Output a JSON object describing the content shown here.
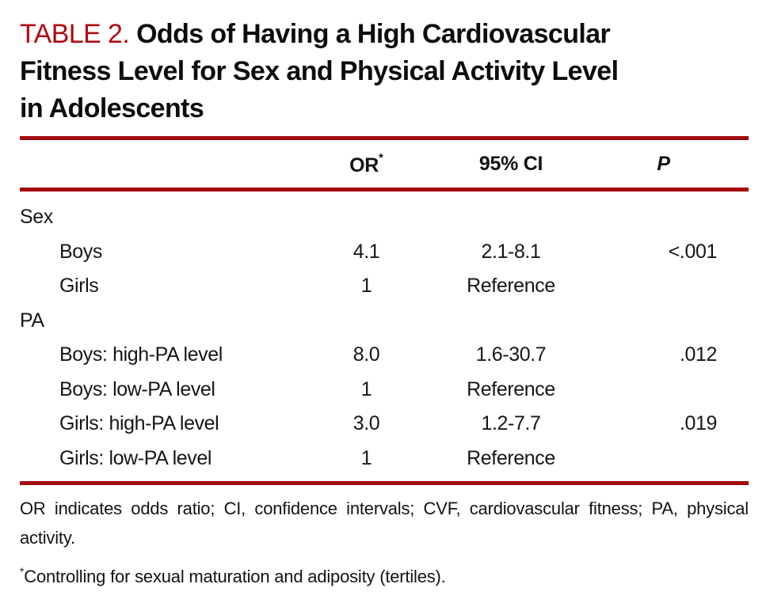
{
  "table": {
    "title": {
      "label": "TABLE 2.",
      "line1": "Odds of Having a High Cardiovascular",
      "line2": "Fitness Level for Sex and Physical Activity Level",
      "line3": "in Adolescents"
    },
    "columns": {
      "or_label": "OR",
      "or_footnote_marker": "*",
      "ci_label": "95% CI",
      "p_label": "P"
    },
    "rows": [
      {
        "label": "Sex",
        "or": "",
        "ci": "",
        "p": ""
      },
      {
        "label": "Boys",
        "or": "4.1",
        "ci": "2.1-8.1",
        "p": "<.001"
      },
      {
        "label": "Girls",
        "or": "1",
        "ci": "Reference",
        "p": ""
      },
      {
        "label": "PA",
        "or": "",
        "ci": "",
        "p": ""
      },
      {
        "label": "Boys: high-PA level",
        "or": "8.0",
        "ci": "1.6-30.7",
        "p": ".012"
      },
      {
        "label": "Boys: low-PA level",
        "or": "1",
        "ci": "Reference",
        "p": ""
      },
      {
        "label": "Girls: high-PA level",
        "or": "3.0",
        "ci": "1.2-7.7",
        "p": ".019"
      },
      {
        "label": "Girls: low-PA level",
        "or": "1",
        "ci": "Reference",
        "p": ""
      }
    ],
    "footnotes": {
      "abbreviations": "OR indicates odds ratio; CI, confidence intervals; CVF, cardiovascular fitness; PA, physical activity.",
      "star_symbol": "*",
      "star_text": "Controlling for sexual maturation and adiposity (tertiles)."
    },
    "colors": {
      "accent_red_text": "#ac0e14",
      "rule_red": "#a30a0f",
      "body_text": "#131313"
    }
  }
}
